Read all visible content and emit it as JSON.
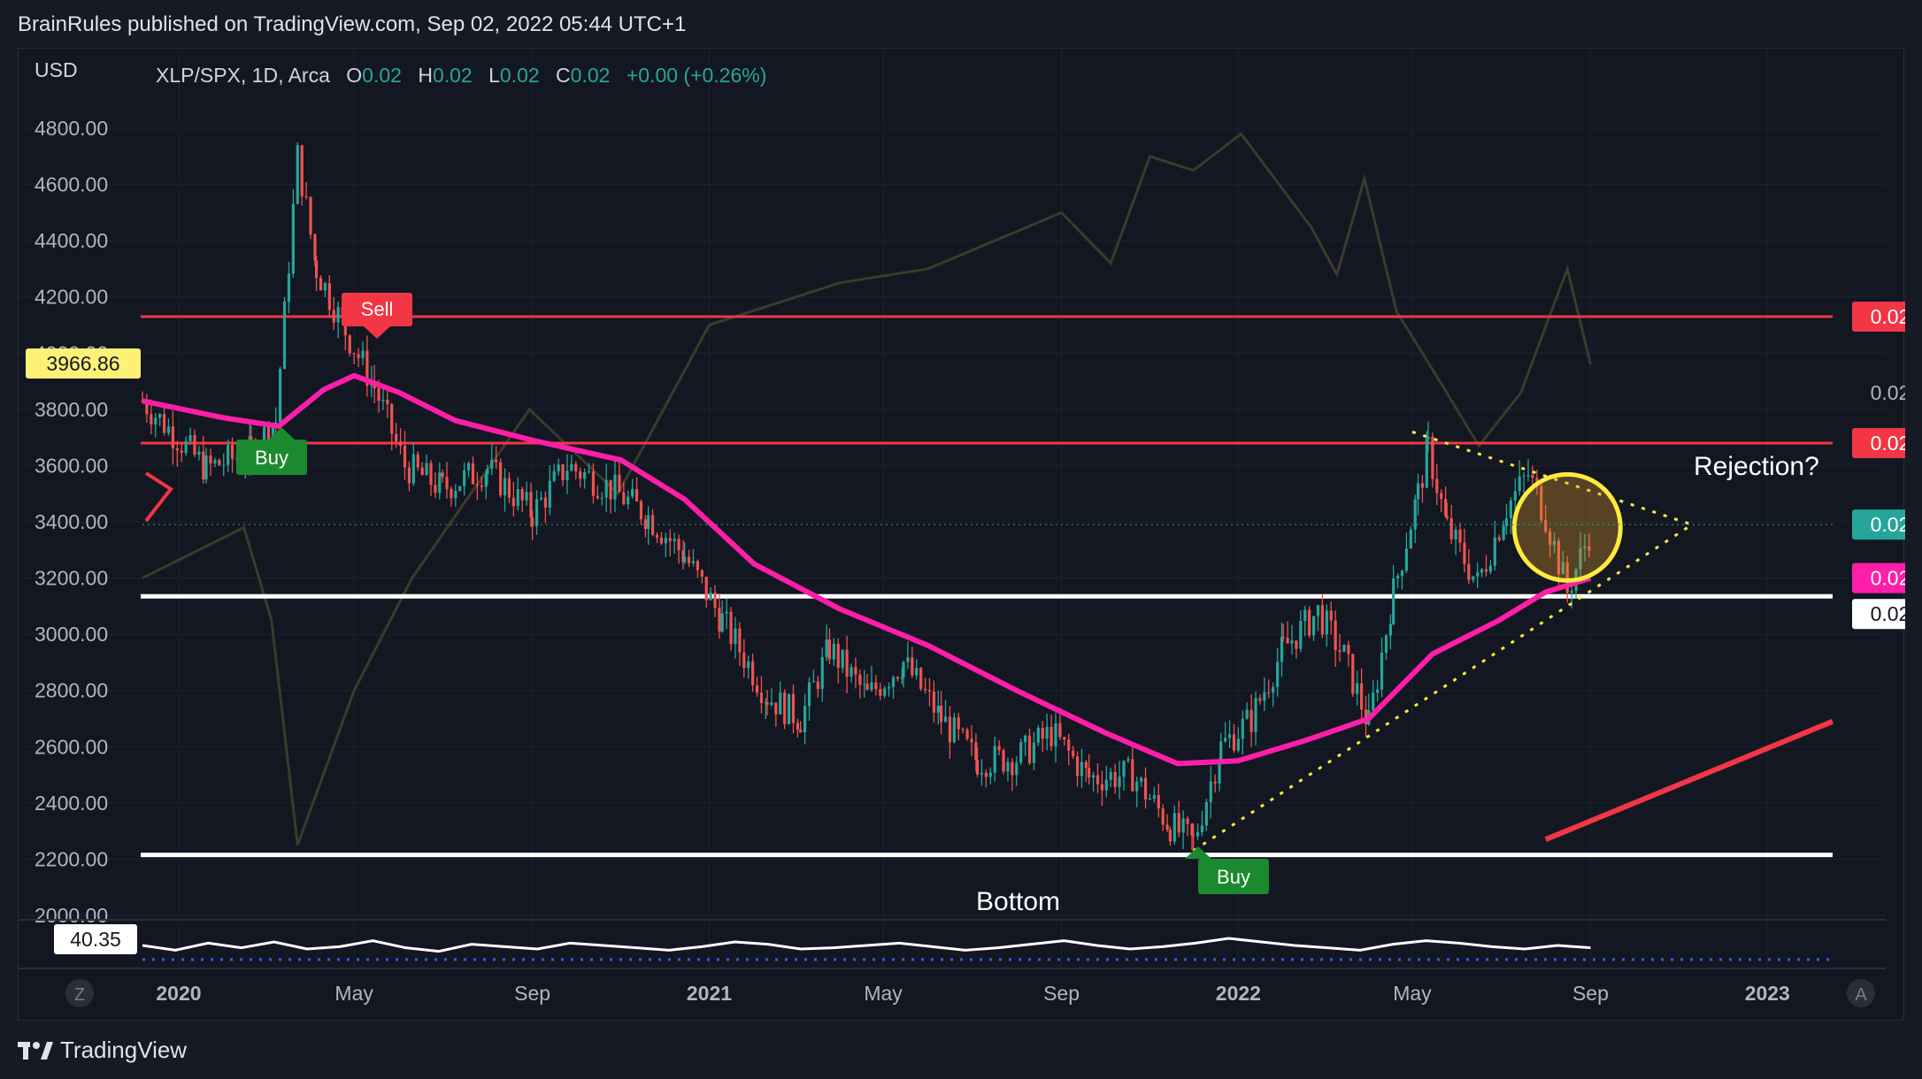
{
  "header": {
    "published_text": "BrainRules published on TradingView.com, Sep 02, 2022 05:44 UTC+1"
  },
  "footer": {
    "brand": "TradingView",
    "logo_icon": "tradingview-logo-icon"
  },
  "legend": {
    "currency": "USD",
    "symbol": "XLP/SPX, 1D, Arca",
    "o_label": "O",
    "o_value": "0.02",
    "h_label": "H",
    "h_value": "0.02",
    "l_label": "L",
    "l_value": "0.02",
    "c_label": "C",
    "c_value": "0.02",
    "change": "+0.00 (+0.26%)"
  },
  "colors": {
    "background": "#131722",
    "grid": "#1e222d",
    "axis_text": "#b2b5be",
    "up": "#26a69a",
    "down": "#ef5350",
    "ma": "#ff1ea8",
    "overlay_line": "#3c3a2b",
    "resistance": "#f23645",
    "support": "#ffffff",
    "triangle": "#ffeb3b",
    "current_price": "#26a69a"
  },
  "badges": {
    "price_scale_current": "3966.86",
    "resistance_top": "0.02",
    "unlabeled": "0.02",
    "resistance_mid": "0.02",
    "last_price": "0.02",
    "ma_value": "0.02",
    "support_value": "0.02",
    "rsi_value": "40.35"
  },
  "annotations": {
    "sell": "Sell",
    "buy_left": "Buy",
    "buy_bottom": "Buy",
    "bottom": "Bottom",
    "rejection": "Rejection?"
  },
  "chart_data": {
    "type": "line",
    "y_axis_ticks": [
      "4800.00",
      "4600.00",
      "4400.00",
      "4200.00",
      "4000.00",
      "3800.00",
      "3600.00",
      "3400.00",
      "3200.00",
      "3000.00",
      "2800.00",
      "2600.00",
      "2400.00",
      "2200.00",
      "2000.00"
    ],
    "ylim": [
      2000,
      4800
    ],
    "x_axis_ticks": [
      {
        "label": "2020",
        "date": "2020-01-01",
        "bold": true
      },
      {
        "label": "May",
        "date": "2020-05-01",
        "bold": false
      },
      {
        "label": "Sep",
        "date": "2020-09-01",
        "bold": false
      },
      {
        "label": "2021",
        "date": "2021-01-01",
        "bold": true
      },
      {
        "label": "May",
        "date": "2021-05-01",
        "bold": false
      },
      {
        "label": "Sep",
        "date": "2021-09-01",
        "bold": false
      },
      {
        "label": "2022",
        "date": "2022-01-01",
        "bold": true
      },
      {
        "label": "May",
        "date": "2022-05-01",
        "bold": false
      },
      {
        "label": "Sep",
        "date": "2022-09-01",
        "bold": false
      },
      {
        "label": "2023",
        "date": "2023-01-01",
        "bold": true
      }
    ],
    "xlim": [
      "2019-12-07",
      "2023-02-15"
    ],
    "price_series": [
      {
        "date": "2019-12-07",
        "value": 3830
      },
      {
        "date": "2020-01-20",
        "value": 3590
      },
      {
        "date": "2020-02-20",
        "value": 3650
      },
      {
        "date": "2020-03-08",
        "value": 3760
      },
      {
        "date": "2020-03-23",
        "value": 4700
      },
      {
        "date": "2020-04-05",
        "value": 4300
      },
      {
        "date": "2020-04-25",
        "value": 4080
      },
      {
        "date": "2020-05-15",
        "value": 3880
      },
      {
        "date": "2020-06-05",
        "value": 3600
      },
      {
        "date": "2020-07-01",
        "value": 3520
      },
      {
        "date": "2020-08-01",
        "value": 3590
      },
      {
        "date": "2020-09-01",
        "value": 3430
      },
      {
        "date": "2020-09-25",
        "value": 3600
      },
      {
        "date": "2020-10-25",
        "value": 3520
      },
      {
        "date": "2020-11-20",
        "value": 3420
      },
      {
        "date": "2020-12-15",
        "value": 3280
      },
      {
        "date": "2021-01-10",
        "value": 3050
      },
      {
        "date": "2021-02-10",
        "value": 2780
      },
      {
        "date": "2021-03-05",
        "value": 2700
      },
      {
        "date": "2021-03-25",
        "value": 2950
      },
      {
        "date": "2021-04-20",
        "value": 2780
      },
      {
        "date": "2021-05-15",
        "value": 2900
      },
      {
        "date": "2021-06-10",
        "value": 2700
      },
      {
        "date": "2021-07-05",
        "value": 2550
      },
      {
        "date": "2021-08-01",
        "value": 2560
      },
      {
        "date": "2021-08-25",
        "value": 2650
      },
      {
        "date": "2021-09-20",
        "value": 2490
      },
      {
        "date": "2021-10-20",
        "value": 2500
      },
      {
        "date": "2021-11-15",
        "value": 2320
      },
      {
        "date": "2021-12-01",
        "value": 2260
      },
      {
        "date": "2021-12-20",
        "value": 2600
      },
      {
        "date": "2022-01-10",
        "value": 2700
      },
      {
        "date": "2022-02-01",
        "value": 2950
      },
      {
        "date": "2022-02-25",
        "value": 3080
      },
      {
        "date": "2022-03-15",
        "value": 2920
      },
      {
        "date": "2022-04-01",
        "value": 2680
      },
      {
        "date": "2022-04-18",
        "value": 3150
      },
      {
        "date": "2022-05-05",
        "value": 3500
      },
      {
        "date": "2022-05-12",
        "value": 3660
      },
      {
        "date": "2022-05-25",
        "value": 3380
      },
      {
        "date": "2022-06-15",
        "value": 3180
      },
      {
        "date": "2022-07-05",
        "value": 3450
      },
      {
        "date": "2022-07-20",
        "value": 3570
      },
      {
        "date": "2022-08-01",
        "value": 3420
      },
      {
        "date": "2022-08-16",
        "value": 3150
      },
      {
        "date": "2022-09-01",
        "value": 3370
      }
    ],
    "moving_average": [
      {
        "date": "2019-12-07",
        "value": 3830
      },
      {
        "date": "2020-02-01",
        "value": 3770
      },
      {
        "date": "2020-03-10",
        "value": 3740
      },
      {
        "date": "2020-04-10",
        "value": 3870
      },
      {
        "date": "2020-05-01",
        "value": 3920
      },
      {
        "date": "2020-06-01",
        "value": 3860
      },
      {
        "date": "2020-07-10",
        "value": 3760
      },
      {
        "date": "2020-09-01",
        "value": 3690
      },
      {
        "date": "2020-11-01",
        "value": 3620
      },
      {
        "date": "2020-12-15",
        "value": 3480
      },
      {
        "date": "2021-02-01",
        "value": 3250
      },
      {
        "date": "2021-04-01",
        "value": 3090
      },
      {
        "date": "2021-06-01",
        "value": 2960
      },
      {
        "date": "2021-08-01",
        "value": 2800
      },
      {
        "date": "2021-10-01",
        "value": 2650
      },
      {
        "date": "2021-11-20",
        "value": 2540
      },
      {
        "date": "2022-01-01",
        "value": 2550
      },
      {
        "date": "2022-02-15",
        "value": 2620
      },
      {
        "date": "2022-04-01",
        "value": 2700
      },
      {
        "date": "2022-05-15",
        "value": 2930
      },
      {
        "date": "2022-06-30",
        "value": 3050
      },
      {
        "date": "2022-08-01",
        "value": 3150
      },
      {
        "date": "2022-09-01",
        "value": 3200
      }
    ],
    "overlay_series": [
      {
        "date": "2019-12-07",
        "value": 3200
      },
      {
        "date": "2020-02-15",
        "value": 3380
      },
      {
        "date": "2020-03-05",
        "value": 3050
      },
      {
        "date": "2020-03-23",
        "value": 2250
      },
      {
        "date": "2020-05-01",
        "value": 2800
      },
      {
        "date": "2020-06-10",
        "value": 3200
      },
      {
        "date": "2020-08-30",
        "value": 3800
      },
      {
        "date": "2020-10-30",
        "value": 3500
      },
      {
        "date": "2021-01-01",
        "value": 4100
      },
      {
        "date": "2021-04-01",
        "value": 4250
      },
      {
        "date": "2021-06-01",
        "value": 4300
      },
      {
        "date": "2021-09-01",
        "value": 4500
      },
      {
        "date": "2021-10-05",
        "value": 4320
      },
      {
        "date": "2021-11-01",
        "value": 4700
      },
      {
        "date": "2021-12-01",
        "value": 4650
      },
      {
        "date": "2022-01-03",
        "value": 4780
      },
      {
        "date": "2022-02-20",
        "value": 4450
      },
      {
        "date": "2022-03-10",
        "value": 4280
      },
      {
        "date": "2022-03-29",
        "value": 4620
      },
      {
        "date": "2022-04-20",
        "value": 4150
      },
      {
        "date": "2022-05-20",
        "value": 3900
      },
      {
        "date": "2022-06-16",
        "value": 3670
      },
      {
        "date": "2022-07-15",
        "value": 3860
      },
      {
        "date": "2022-08-16",
        "value": 4300
      },
      {
        "date": "2022-09-01",
        "value": 3960
      }
    ],
    "horizontal_levels": [
      {
        "name": "resistance-top",
        "value": 4130,
        "color": "#f23645"
      },
      {
        "name": "resistance-mid",
        "value": 3680,
        "color": "#f23645"
      },
      {
        "name": "support-upper",
        "value": 3135,
        "color": "#ffffff"
      },
      {
        "name": "support-bottom",
        "value": 2215,
        "color": "#ffffff"
      }
    ],
    "triangle": {
      "upper_line": [
        {
          "date": "2022-05-01",
          "value": 3720
        },
        {
          "date": "2022-11-10",
          "value": 3390
        }
      ],
      "lower_line": [
        {
          "date": "2021-12-01",
          "value": 2230
        },
        {
          "date": "2022-11-10",
          "value": 3390
        }
      ]
    },
    "trend_arrow": [
      {
        "date": "2022-08-01",
        "value": 2270
      },
      {
        "date": "2023-02-15",
        "value": 2690
      }
    ],
    "highlight_circle": {
      "date": "2022-08-16",
      "value": 3380
    },
    "rsi_series": [
      42,
      38,
      44,
      40,
      45,
      39,
      41,
      46,
      40,
      37,
      43,
      41,
      39,
      44,
      42,
      40,
      38,
      41,
      45,
      43,
      39,
      40,
      42,
      44,
      41,
      38,
      40,
      43,
      46,
      42,
      39,
      41,
      44,
      48,
      45,
      42,
      40,
      38,
      43,
      46,
      44,
      41,
      39,
      42,
      40
    ]
  }
}
